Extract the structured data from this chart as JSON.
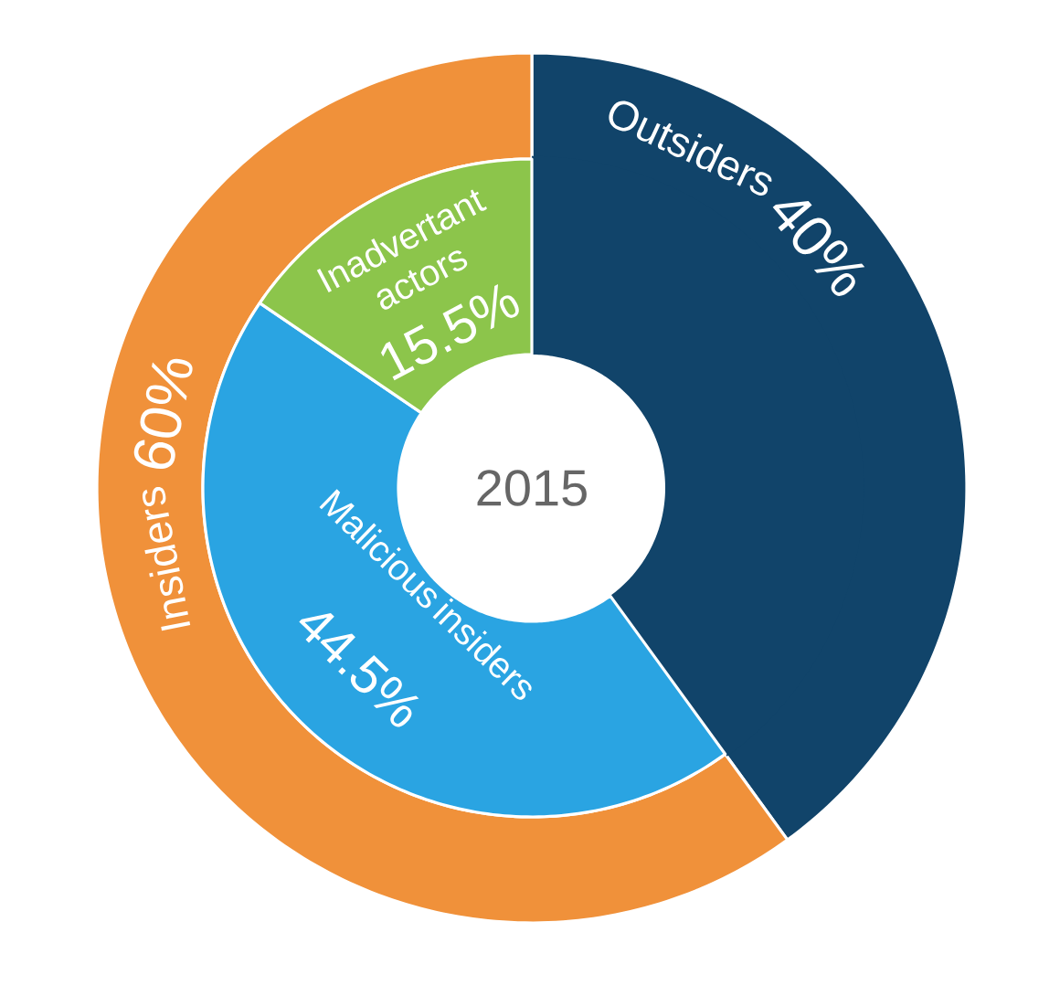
{
  "chart_data": [
    {
      "type": "donut",
      "title": "2015",
      "categories": [
        "Outsiders",
        "Insiders"
      ],
      "values": [
        40,
        60
      ],
      "colors": [
        "#11446a",
        "#f0913a"
      ],
      "value_labels": [
        "40%",
        "60%"
      ]
    },
    {
      "type": "donut",
      "categories": [
        null,
        "Malicious insiders",
        "Inadvertant actors"
      ],
      "values": [
        40,
        44.5,
        15.5
      ],
      "colors": [
        "#11446a",
        "#2aa4e2",
        "#8cc54b"
      ],
      "value_labels": [
        null,
        "44.5%",
        "15.5%"
      ]
    }
  ]
}
